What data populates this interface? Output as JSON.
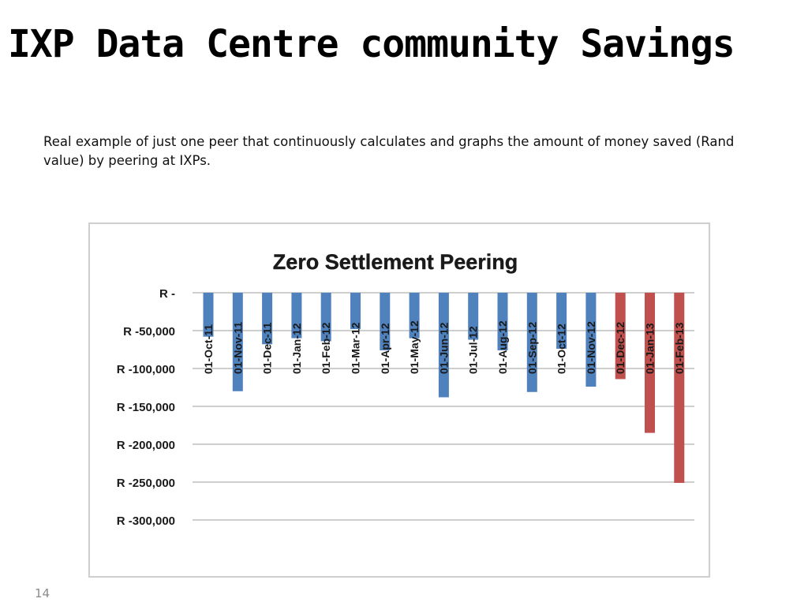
{
  "slide": {
    "title": "IXP Data Centre community Savings",
    "subtitle": "Real example of just one peer that continuously calculates and graphs the amount of money saved (Rand value) by peering at IXPs.",
    "page_number": "14"
  },
  "colors": {
    "bar_blue": "#4f81bd",
    "bar_red": "#c0504d",
    "gridline": "#bfbfbf",
    "text": "#1a1a1a"
  },
  "chart_data": {
    "type": "bar",
    "title": "Zero Settlement Peering",
    "xlabel": "",
    "ylabel": "",
    "ylim": [
      -300000,
      0
    ],
    "y_ticks": [
      0,
      -50000,
      -100000,
      -150000,
      -200000,
      -250000,
      -300000
    ],
    "y_tick_labels": [
      "R -",
      "R -50,000",
      "R -100,000",
      "R -150,000",
      "R -200,000",
      "R -250,000",
      "R -300,000"
    ],
    "grid": true,
    "legend": "none",
    "categories": [
      "01-Oct-11",
      "01-Nov-11",
      "01-Dec-11",
      "01-Jan-12",
      "01-Feb-12",
      "01-Mar-12",
      "01-Apr-12",
      "01-May-12",
      "01-Jun-12",
      "01-Jul-12",
      "01-Aug-12",
      "01-Sep-12",
      "01-Oct-12",
      "01-Nov-12",
      "01-Dec-12",
      "01-Jan-13",
      "01-Feb-13"
    ],
    "values": [
      -58000,
      -130000,
      -68000,
      -60000,
      -64000,
      -48000,
      -76000,
      -60000,
      -138000,
      -62000,
      -76000,
      -131000,
      -74000,
      -124000,
      -114000,
      -185000,
      -251000
    ],
    "bar_colors": [
      "#4f81bd",
      "#4f81bd",
      "#4f81bd",
      "#4f81bd",
      "#4f81bd",
      "#4f81bd",
      "#4f81bd",
      "#4f81bd",
      "#4f81bd",
      "#4f81bd",
      "#4f81bd",
      "#4f81bd",
      "#4f81bd",
      "#4f81bd",
      "#c0504d",
      "#c0504d",
      "#c0504d"
    ]
  }
}
